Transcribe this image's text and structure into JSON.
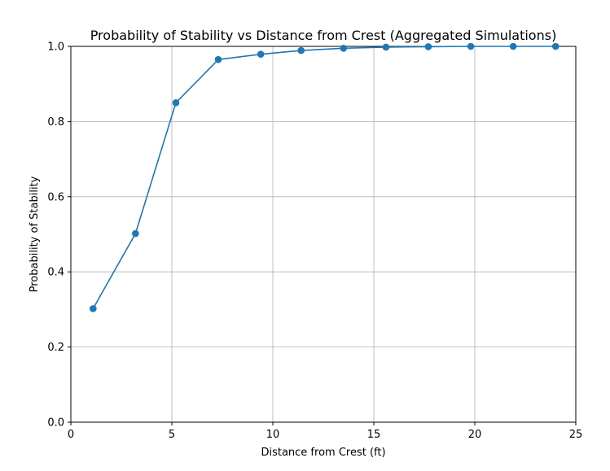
{
  "chart_data": {
    "type": "line",
    "title": "Probability of Stability vs Distance from Crest (Aggregated Simulations)",
    "xlabel": "Distance from Crest (ft)",
    "ylabel": "Probability of Stability",
    "xlim": [
      0,
      25
    ],
    "ylim": [
      0.0,
      1.0
    ],
    "xticks": [
      0,
      5,
      10,
      15,
      20,
      25
    ],
    "yticks": [
      0.0,
      0.2,
      0.4,
      0.6,
      0.8,
      1.0
    ],
    "xtick_labels": [
      "0",
      "5",
      "10",
      "15",
      "20",
      "25"
    ],
    "ytick_labels": [
      "0.0",
      "0.2",
      "0.4",
      "0.6",
      "0.8",
      "1.0"
    ],
    "grid": true,
    "series": [
      {
        "color": "#1f77b4",
        "marker": "circle",
        "x": [
          1.1,
          3.2,
          5.2,
          7.3,
          9.4,
          11.4,
          13.5,
          15.6,
          17.7,
          19.8,
          21.9,
          24.0
        ],
        "y": [
          0.302,
          0.502,
          0.85,
          0.965,
          0.979,
          0.989,
          0.995,
          0.998,
          0.999,
          1.0,
          1.0,
          1.0
        ]
      }
    ]
  }
}
